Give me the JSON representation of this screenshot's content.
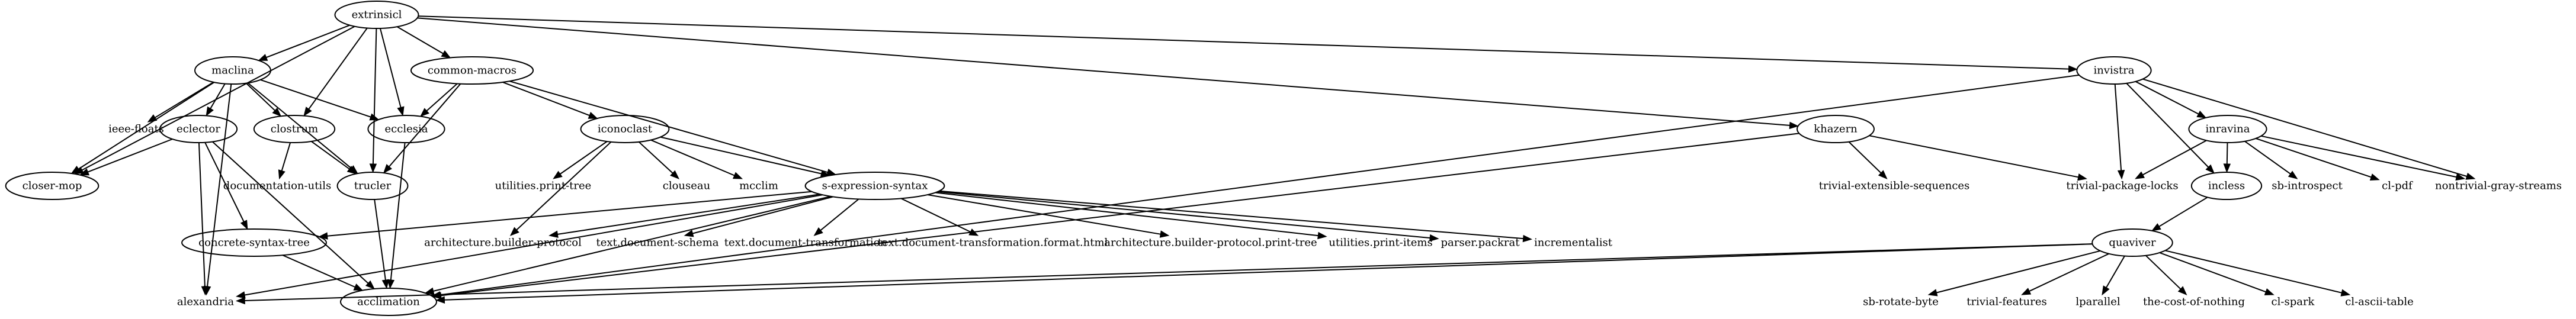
{
  "colors": {
    "background": "#ffffff",
    "ink": "#000000"
  },
  "nodes": [
    {
      "id": "extrinsicl",
      "label": "extrinsicl",
      "shape": "ellipse"
    },
    {
      "id": "maclina",
      "label": "maclina",
      "shape": "ellipse"
    },
    {
      "id": "common-macros",
      "label": "common-macros",
      "shape": "ellipse"
    },
    {
      "id": "invistra",
      "label": "invistra",
      "shape": "ellipse"
    },
    {
      "id": "closer-mop",
      "label": "closer-mop",
      "shape": "ellipse"
    },
    {
      "id": "ieee-floats",
      "label": "ieee-floats",
      "shape": "plain"
    },
    {
      "id": "eclector",
      "label": "eclector",
      "shape": "ellipse"
    },
    {
      "id": "clostrum",
      "label": "clostrum",
      "shape": "ellipse"
    },
    {
      "id": "ecclesia",
      "label": "ecclesia",
      "shape": "ellipse"
    },
    {
      "id": "iconoclast",
      "label": "iconoclast",
      "shape": "ellipse"
    },
    {
      "id": "khazern",
      "label": "khazern",
      "shape": "ellipse"
    },
    {
      "id": "inravina",
      "label": "inravina",
      "shape": "ellipse"
    },
    {
      "id": "documentation-utils",
      "label": "documentation-utils",
      "shape": "plain"
    },
    {
      "id": "trucler",
      "label": "trucler",
      "shape": "ellipse"
    },
    {
      "id": "utilities.print-tree",
      "label": "utilities.print-tree",
      "shape": "plain"
    },
    {
      "id": "clouseau",
      "label": "clouseau",
      "shape": "plain"
    },
    {
      "id": "mcclim",
      "label": "mcclim",
      "shape": "plain"
    },
    {
      "id": "s-expression-syntax",
      "label": "s-expression-syntax",
      "shape": "ellipse"
    },
    {
      "id": "trivial-extensible-sequences",
      "label": "trivial-extensible-sequences",
      "shape": "plain"
    },
    {
      "id": "trivial-package-locks",
      "label": "trivial-package-locks",
      "shape": "plain"
    },
    {
      "id": "incless",
      "label": "incless",
      "shape": "ellipse"
    },
    {
      "id": "sb-introspect",
      "label": "sb-introspect",
      "shape": "plain"
    },
    {
      "id": "cl-pdf",
      "label": "cl-pdf",
      "shape": "plain"
    },
    {
      "id": "nontrivial-gray-streams",
      "label": "nontrivial-gray-streams",
      "shape": "plain"
    },
    {
      "id": "concrete-syntax-tree",
      "label": "concrete-syntax-tree",
      "shape": "ellipse"
    },
    {
      "id": "architecture.builder-protocol",
      "label": "architecture.builder-protocol",
      "shape": "plain"
    },
    {
      "id": "text.document-schema",
      "label": "text.document-schema",
      "shape": "plain"
    },
    {
      "id": "text.document-transformation",
      "label": "text.document-transformation",
      "shape": "plain"
    },
    {
      "id": "text.document-transformation.format.html",
      "label": "text.document-transformation.format.html",
      "shape": "plain"
    },
    {
      "id": "architecture.builder-protocol.print-tree",
      "label": "architecture.builder-protocol.print-tree",
      "shape": "plain"
    },
    {
      "id": "utilities.print-items",
      "label": "utilities.print-items",
      "shape": "plain"
    },
    {
      "id": "parser.packrat",
      "label": "parser.packrat",
      "shape": "plain"
    },
    {
      "id": "incrementalist",
      "label": "incrementalist",
      "shape": "plain"
    },
    {
      "id": "quaviver",
      "label": "quaviver",
      "shape": "ellipse"
    },
    {
      "id": "alexandria",
      "label": "alexandria",
      "shape": "plain"
    },
    {
      "id": "acclimation",
      "label": "acclimation",
      "shape": "ellipse"
    },
    {
      "id": "sb-rotate-byte",
      "label": "sb-rotate-byte",
      "shape": "plain"
    },
    {
      "id": "trivial-features",
      "label": "trivial-features",
      "shape": "plain"
    },
    {
      "id": "lparallel",
      "label": "lparallel",
      "shape": "plain"
    },
    {
      "id": "the-cost-of-nothing",
      "label": "the-cost-of-nothing",
      "shape": "plain"
    },
    {
      "id": "cl-spark",
      "label": "cl-spark",
      "shape": "plain"
    },
    {
      "id": "cl-ascii-table",
      "label": "cl-ascii-table",
      "shape": "plain"
    }
  ],
  "edges": [
    {
      "from": "extrinsicl",
      "to": "maclina"
    },
    {
      "from": "extrinsicl",
      "to": "common-macros"
    },
    {
      "from": "extrinsicl",
      "to": "invistra"
    },
    {
      "from": "extrinsicl",
      "to": "closer-mop"
    },
    {
      "from": "extrinsicl",
      "to": "clostrum"
    },
    {
      "from": "extrinsicl",
      "to": "trucler"
    },
    {
      "from": "extrinsicl",
      "to": "ecclesia"
    },
    {
      "from": "extrinsicl",
      "to": "khazern"
    },
    {
      "from": "maclina",
      "to": "ieee-floats"
    },
    {
      "from": "maclina",
      "to": "eclector"
    },
    {
      "from": "maclina",
      "to": "clostrum"
    },
    {
      "from": "maclina",
      "to": "ecclesia"
    },
    {
      "from": "maclina",
      "to": "closer-mop"
    },
    {
      "from": "maclina",
      "to": "trucler"
    },
    {
      "from": "maclina",
      "to": "alexandria"
    },
    {
      "from": "common-macros",
      "to": "ecclesia"
    },
    {
      "from": "common-macros",
      "to": "iconoclast"
    },
    {
      "from": "common-macros",
      "to": "s-expression-syntax"
    },
    {
      "from": "common-macros",
      "to": "trucler"
    },
    {
      "from": "eclector",
      "to": "closer-mop"
    },
    {
      "from": "eclector",
      "to": "concrete-syntax-tree"
    },
    {
      "from": "eclector",
      "to": "alexandria"
    },
    {
      "from": "eclector",
      "to": "acclimation"
    },
    {
      "from": "clostrum",
      "to": "documentation-utils"
    },
    {
      "from": "clostrum",
      "to": "trucler"
    },
    {
      "from": "ecclesia",
      "to": "acclimation"
    },
    {
      "from": "trucler",
      "to": "acclimation"
    },
    {
      "from": "iconoclast",
      "to": "utilities.print-tree"
    },
    {
      "from": "iconoclast",
      "to": "clouseau"
    },
    {
      "from": "iconoclast",
      "to": "mcclim"
    },
    {
      "from": "iconoclast",
      "to": "s-expression-syntax"
    },
    {
      "from": "iconoclast",
      "to": "architecture.builder-protocol"
    },
    {
      "from": "s-expression-syntax",
      "to": "concrete-syntax-tree"
    },
    {
      "from": "s-expression-syntax",
      "to": "architecture.builder-protocol"
    },
    {
      "from": "s-expression-syntax",
      "to": "text.document-schema"
    },
    {
      "from": "s-expression-syntax",
      "to": "text.document-transformation"
    },
    {
      "from": "s-expression-syntax",
      "to": "text.document-transformation.format.html"
    },
    {
      "from": "s-expression-syntax",
      "to": "architecture.builder-protocol.print-tree"
    },
    {
      "from": "s-expression-syntax",
      "to": "utilities.print-items"
    },
    {
      "from": "s-expression-syntax",
      "to": "parser.packrat"
    },
    {
      "from": "s-expression-syntax",
      "to": "incrementalist"
    },
    {
      "from": "s-expression-syntax",
      "to": "alexandria"
    },
    {
      "from": "s-expression-syntax",
      "to": "acclimation"
    },
    {
      "from": "concrete-syntax-tree",
      "to": "acclimation"
    },
    {
      "from": "khazern",
      "to": "trivial-extensible-sequences"
    },
    {
      "from": "khazern",
      "to": "trivial-package-locks"
    },
    {
      "from": "khazern",
      "to": "acclimation"
    },
    {
      "from": "invistra",
      "to": "inravina"
    },
    {
      "from": "invistra",
      "to": "trivial-package-locks"
    },
    {
      "from": "invistra",
      "to": "incless"
    },
    {
      "from": "invistra",
      "to": "nontrivial-gray-streams"
    },
    {
      "from": "invistra",
      "to": "acclimation"
    },
    {
      "from": "inravina",
      "to": "trivial-package-locks"
    },
    {
      "from": "inravina",
      "to": "incless"
    },
    {
      "from": "inravina",
      "to": "sb-introspect"
    },
    {
      "from": "inravina",
      "to": "cl-pdf"
    },
    {
      "from": "inravina",
      "to": "nontrivial-gray-streams"
    },
    {
      "from": "incless",
      "to": "quaviver"
    },
    {
      "from": "quaviver",
      "to": "alexandria"
    },
    {
      "from": "quaviver",
      "to": "acclimation"
    },
    {
      "from": "quaviver",
      "to": "sb-rotate-byte"
    },
    {
      "from": "quaviver",
      "to": "trivial-features"
    },
    {
      "from": "quaviver",
      "to": "lparallel"
    },
    {
      "from": "quaviver",
      "to": "the-cost-of-nothing"
    },
    {
      "from": "quaviver",
      "to": "cl-spark"
    },
    {
      "from": "quaviver",
      "to": "cl-ascii-table"
    }
  ]
}
